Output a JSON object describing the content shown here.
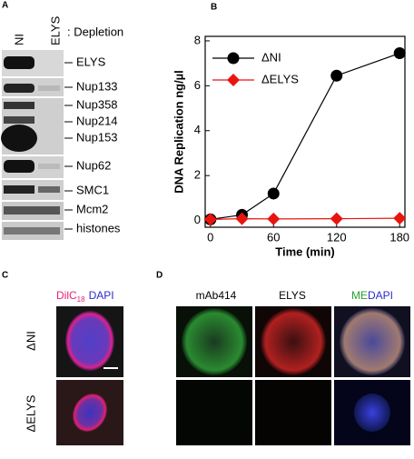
{
  "panel_a": {
    "label": "A",
    "lanes": [
      "NI",
      "ELYS"
    ],
    "lane_note": ": Depletion",
    "proteins": [
      "ELYS",
      "Nup133",
      "Nup358",
      "Nup214",
      "Nup153",
      "Nup62",
      "SMC1",
      "Mcm2",
      "histones"
    ]
  },
  "panel_b": {
    "label": "B"
  },
  "chart_data": {
    "type": "line",
    "x_label": "Time (min)",
    "y_label": "DNA Replication ng/µl",
    "x": [
      0,
      30,
      60,
      120,
      180
    ],
    "series": [
      {
        "name": "ΔNI",
        "color": "#000000",
        "marker": "circle",
        "values": [
          0.05,
          0.25,
          1.2,
          6.45,
          7.45
        ]
      },
      {
        "name": "ΔELYS",
        "color": "#e8150f",
        "marker": "diamond",
        "values": [
          0.05,
          0.08,
          0.07,
          0.08,
          0.1
        ]
      }
    ],
    "xlim": [
      -5,
      185
    ],
    "xticks": [
      0,
      60,
      120,
      180
    ],
    "ylim": [
      -0.3,
      8.2
    ],
    "yticks": [
      0,
      2,
      4,
      6,
      8
    ]
  },
  "panel_c": {
    "label": "C",
    "stain_1": "DilC",
    "stain_1_sub": "18",
    "stain_2": "DAPI",
    "rows": [
      "ΔNI",
      "ΔELYS"
    ]
  },
  "panel_d": {
    "label": "D",
    "columns": [
      "mAb414",
      "ELYS"
    ],
    "merge_1": "ME",
    "merge_2": "DAPI"
  }
}
